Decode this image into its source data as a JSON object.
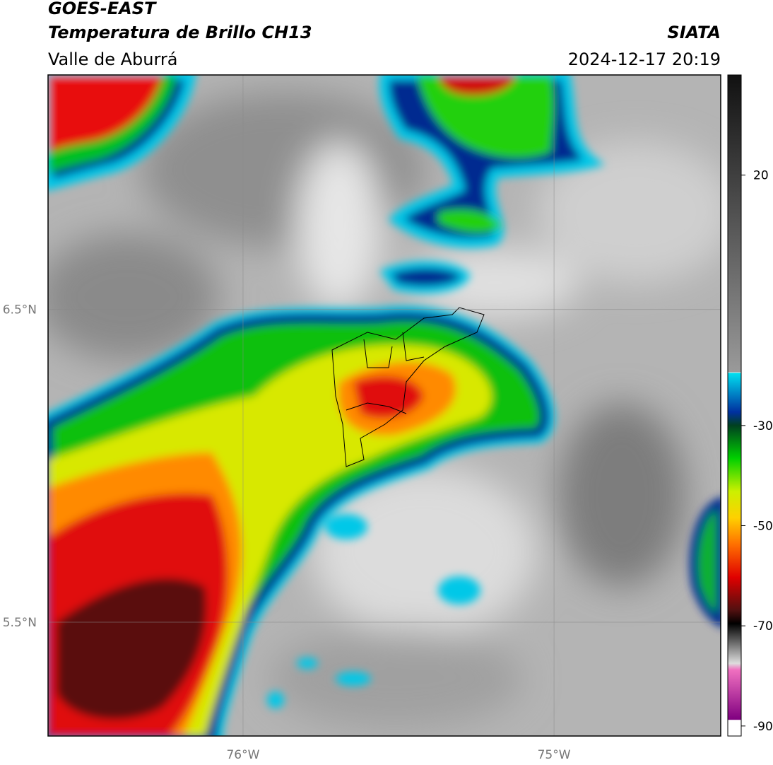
{
  "header": {
    "title": "GOES-EAST",
    "subtitle": "Temperatura de Brillo CH13",
    "region": "Valle de Aburrá",
    "source": "SIATA",
    "datetime": "2024-12-17 20:19"
  },
  "map": {
    "xlim": [
      -76.627,
      -74.464
    ],
    "ylim": [
      5.136,
      7.25
    ],
    "xticks": [
      {
        "value": -76,
        "label": "76°W"
      },
      {
        "value": -75,
        "label": "75°W"
      }
    ],
    "yticks": [
      {
        "value": 6.5,
        "label": "6.5°N"
      },
      {
        "value": 5.5,
        "label": "5.5°N"
      }
    ]
  },
  "colorbar": {
    "lim": [
      -92,
      40
    ],
    "ticks": [
      20,
      -30,
      -50,
      -70,
      -90
    ]
  }
}
